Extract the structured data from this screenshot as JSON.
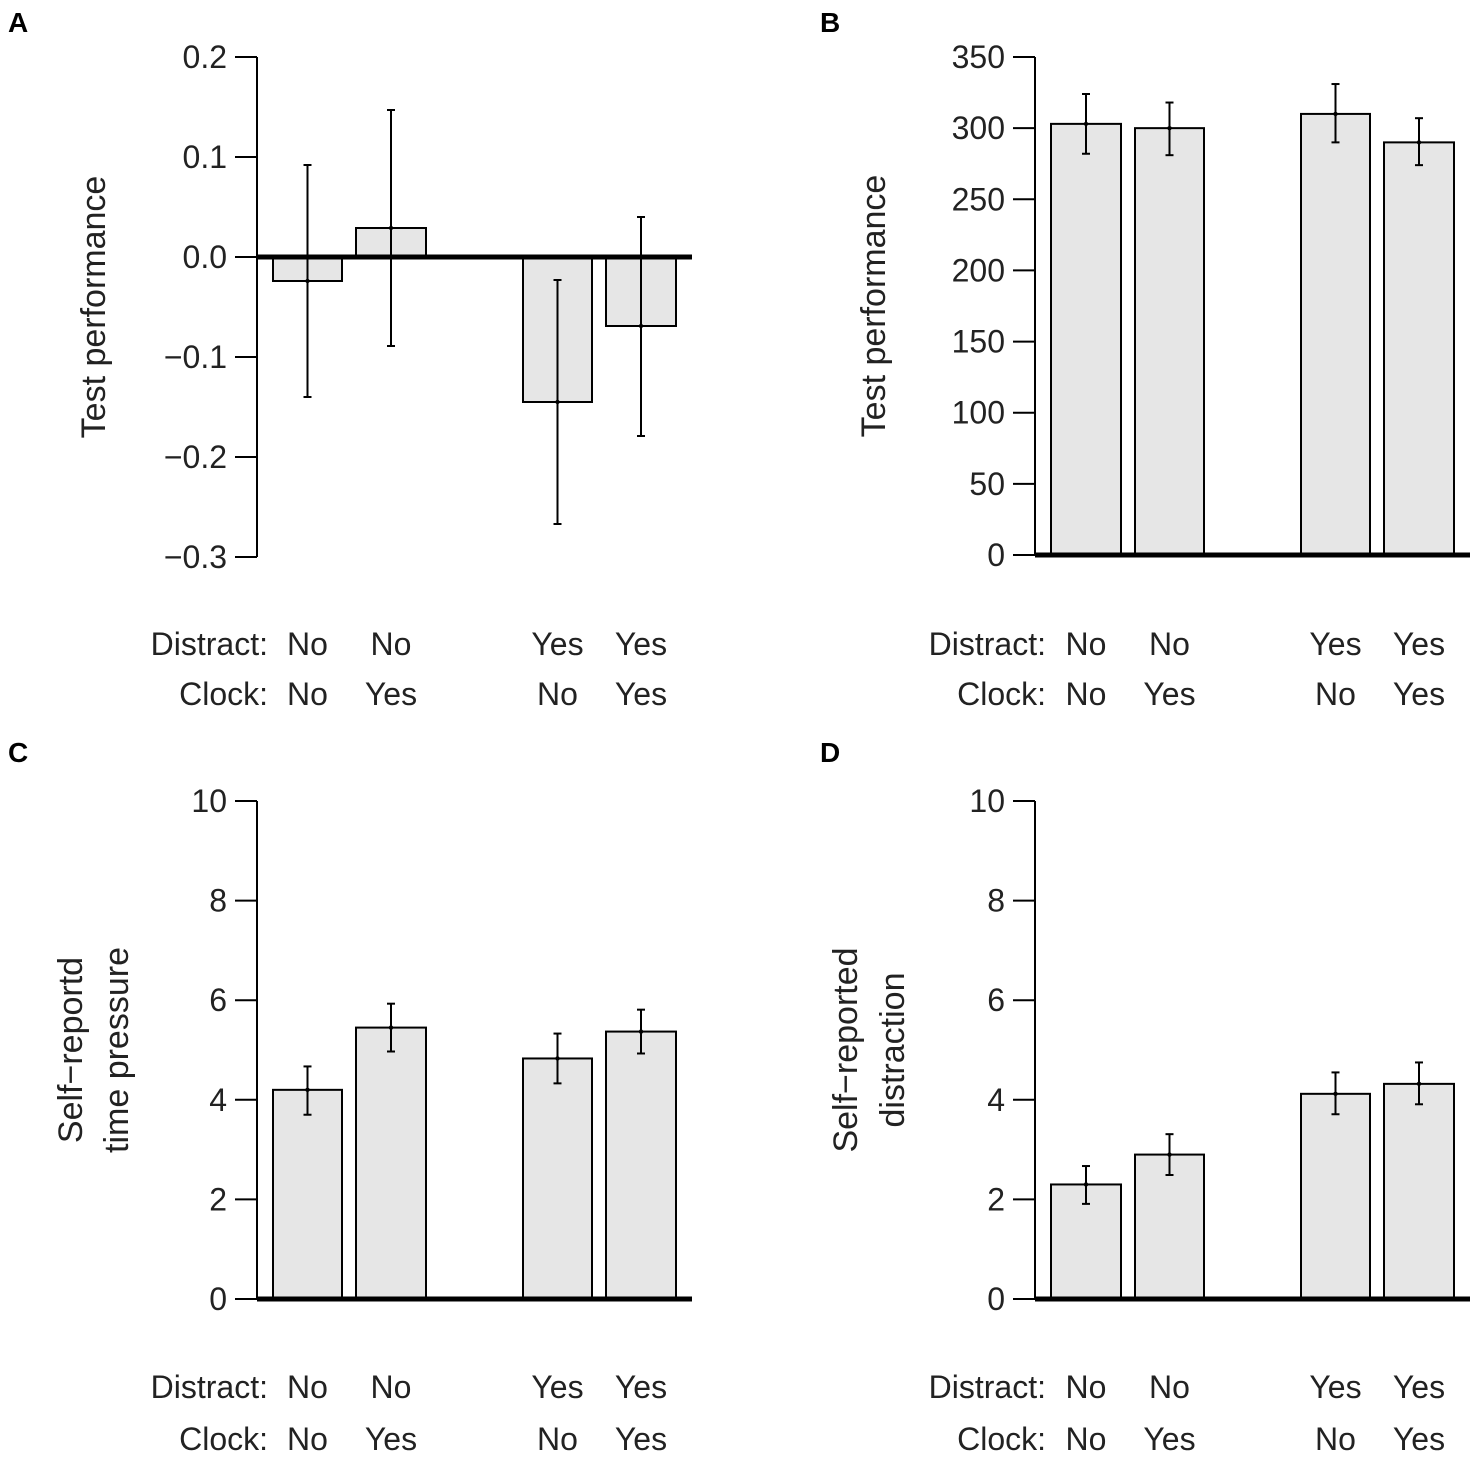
{
  "chart_data": [
    {
      "panel": "A",
      "type": "bar",
      "ylabel": [
        "Test performance"
      ],
      "ylim": [
        -0.3,
        0.2
      ],
      "yticks": [
        -0.3,
        -0.2,
        -0.1,
        0.0,
        0.1,
        0.2
      ],
      "ytick_labels": [
        "−0.3",
        "−0.2",
        "−0.1",
        "0.0",
        "0.1",
        "0.2"
      ],
      "baseline": 0,
      "row_labels": [
        "Distract:",
        "Clock:"
      ],
      "bars": [
        {
          "distract": "No",
          "clock": "No",
          "value": -0.024,
          "err_low": -0.14,
          "err_high": 0.092
        },
        {
          "distract": "No",
          "clock": "Yes",
          "value": 0.029,
          "err_low": -0.089,
          "err_high": 0.147
        },
        {
          "distract": "Yes",
          "clock": "No",
          "value": -0.145,
          "err_low": -0.267,
          "err_high": -0.023
        },
        {
          "distract": "Yes",
          "clock": "Yes",
          "value": -0.069,
          "err_low": -0.179,
          "err_high": 0.04
        }
      ]
    },
    {
      "panel": "B",
      "type": "bar",
      "ylabel": [
        "Test performance"
      ],
      "ylim": [
        0,
        350
      ],
      "yticks": [
        0,
        50,
        100,
        150,
        200,
        250,
        300,
        350
      ],
      "ytick_labels": [
        "0",
        "50",
        "100",
        "150",
        "200",
        "250",
        "300",
        "350"
      ],
      "baseline": 0,
      "row_labels": [
        "Distract:",
        "Clock:"
      ],
      "bars": [
        {
          "distract": "No",
          "clock": "No",
          "value": 303,
          "err_low": 282,
          "err_high": 324
        },
        {
          "distract": "No",
          "clock": "Yes",
          "value": 300,
          "err_low": 281,
          "err_high": 318
        },
        {
          "distract": "Yes",
          "clock": "No",
          "value": 310,
          "err_low": 290,
          "err_high": 331
        },
        {
          "distract": "Yes",
          "clock": "Yes",
          "value": 290,
          "err_low": 274,
          "err_high": 307
        }
      ]
    },
    {
      "panel": "C",
      "type": "bar",
      "ylabel": [
        "Self−reportd",
        "time pressure"
      ],
      "ylim": [
        0,
        10
      ],
      "yticks": [
        0,
        2,
        4,
        6,
        8,
        10
      ],
      "ytick_labels": [
        "0",
        "2",
        "4",
        "6",
        "8",
        "10"
      ],
      "baseline": 0,
      "row_labels": [
        "Distract:",
        "Clock:"
      ],
      "bars": [
        {
          "distract": "No",
          "clock": "No",
          "value": 4.2,
          "err_low": 3.7,
          "err_high": 4.67
        },
        {
          "distract": "No",
          "clock": "Yes",
          "value": 5.45,
          "err_low": 4.97,
          "err_high": 5.93
        },
        {
          "distract": "Yes",
          "clock": "No",
          "value": 4.83,
          "err_low": 4.33,
          "err_high": 5.33
        },
        {
          "distract": "Yes",
          "clock": "Yes",
          "value": 5.37,
          "err_low": 4.93,
          "err_high": 5.81
        }
      ]
    },
    {
      "panel": "D",
      "type": "bar",
      "ylabel": [
        "Self−reported",
        "distraction"
      ],
      "ylim": [
        0,
        10
      ],
      "yticks": [
        0,
        2,
        4,
        6,
        8,
        10
      ],
      "ytick_labels": [
        "0",
        "2",
        "4",
        "6",
        "8",
        "10"
      ],
      "baseline": 0,
      "row_labels": [
        "Distract:",
        "Clock:"
      ],
      "bars": [
        {
          "distract": "No",
          "clock": "No",
          "value": 2.3,
          "err_low": 1.91,
          "err_high": 2.67
        },
        {
          "distract": "No",
          "clock": "Yes",
          "value": 2.9,
          "err_low": 2.49,
          "err_high": 3.31
        },
        {
          "distract": "Yes",
          "clock": "No",
          "value": 4.12,
          "err_low": 3.71,
          "err_high": 4.55
        },
        {
          "distract": "Yes",
          "clock": "Yes",
          "value": 4.32,
          "err_low": 3.91,
          "err_high": 4.75
        }
      ]
    }
  ]
}
